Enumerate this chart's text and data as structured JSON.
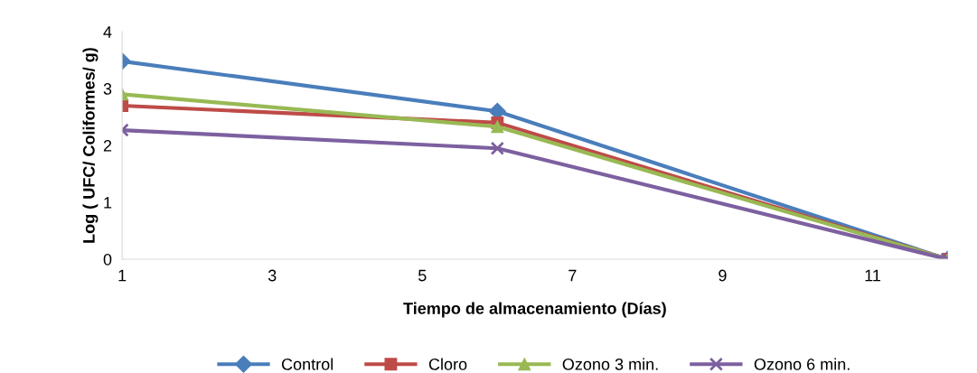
{
  "chart_data": {
    "type": "line",
    "xlabel": "Tiempo de almacenamiento (Días)",
    "ylabel": "Log ( UFC/ Coliformes/ g)",
    "x": [
      1,
      6,
      12
    ],
    "series": [
      {
        "name": "Control",
        "color": "#4a7ebb",
        "marker": "diamond",
        "values": [
          3.48,
          2.6,
          0
        ]
      },
      {
        "name": "Cloro",
        "color": "#be4b48",
        "marker": "square",
        "values": [
          2.7,
          2.4,
          0
        ]
      },
      {
        "name": "Ozono 3 min.",
        "color": "#98b954",
        "marker": "triangle",
        "values": [
          2.9,
          2.33,
          0
        ]
      },
      {
        "name": "Ozono 6 min.",
        "color": "#7d60a0",
        "marker": "cross",
        "values": [
          2.27,
          1.95,
          0
        ]
      }
    ],
    "xlim": [
      1,
      12
    ],
    "xticks": [
      1,
      3,
      5,
      7,
      9,
      11
    ],
    "ylim": [
      0,
      4
    ],
    "yticks": [
      0,
      1,
      2,
      3,
      4
    ],
    "grid": false,
    "legend": "bottom",
    "line_style": "solid"
  }
}
